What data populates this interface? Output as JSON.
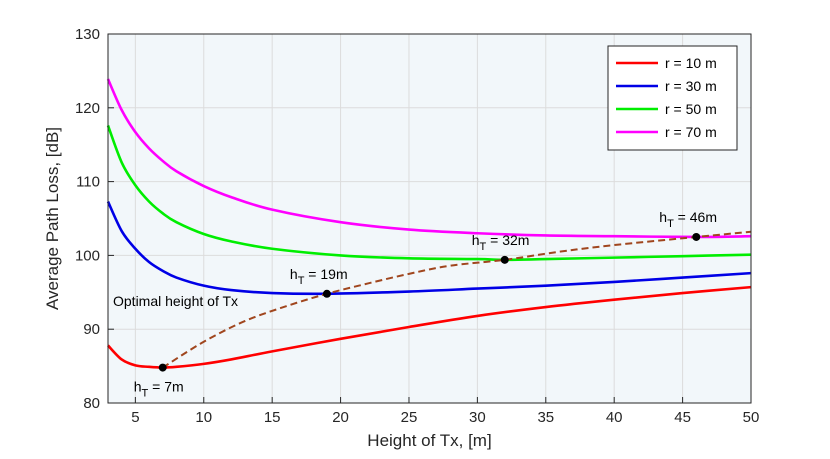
{
  "chart_data": {
    "type": "line",
    "xlabel": "Height of Tx, [m]",
    "ylabel": "Average Path Loss, [dB]",
    "xlim": [
      3,
      50
    ],
    "ylim": [
      80,
      130
    ],
    "xticks": [
      5,
      10,
      15,
      20,
      25,
      30,
      35,
      40,
      45,
      50
    ],
    "yticks": [
      80,
      90,
      100,
      110,
      120,
      130
    ],
    "grid": true,
    "legend_position": "top-right",
    "series": [
      {
        "name": "r = 10 m",
        "color": "#ff0000",
        "x": [
          3,
          4,
          5,
          6,
          7,
          8,
          10,
          12,
          15,
          20,
          25,
          30,
          35,
          40,
          45,
          50
        ],
        "y": [
          87.8,
          85.9,
          85.1,
          84.9,
          84.8,
          84.9,
          85.3,
          85.9,
          87.0,
          88.7,
          90.3,
          91.8,
          93.0,
          94.0,
          94.9,
          95.7
        ]
      },
      {
        "name": "r = 30 m",
        "color": "#0000e6",
        "x": [
          3,
          4,
          5,
          6,
          7,
          8,
          10,
          12,
          15,
          19,
          25,
          30,
          35,
          40,
          45,
          50
        ],
        "y": [
          107.3,
          103.3,
          100.9,
          99.1,
          97.9,
          97.0,
          95.9,
          95.3,
          94.9,
          94.8,
          95.1,
          95.5,
          95.9,
          96.4,
          97.0,
          97.6
        ]
      },
      {
        "name": "r = 50 m",
        "color": "#00ee00",
        "x": [
          3,
          4,
          5,
          6,
          7,
          8,
          10,
          12,
          15,
          20,
          25,
          30,
          32,
          35,
          40,
          45,
          50
        ],
        "y": [
          117.6,
          112.6,
          109.5,
          107.3,
          105.7,
          104.5,
          102.9,
          101.9,
          100.9,
          100.0,
          99.6,
          99.5,
          99.4,
          99.5,
          99.7,
          99.9,
          100.1
        ]
      },
      {
        "name": "r = 70 m",
        "color": "#ff00ff",
        "x": [
          3,
          4,
          5,
          6,
          7,
          8,
          10,
          12,
          15,
          20,
          25,
          30,
          35,
          40,
          46,
          50
        ],
        "y": [
          123.9,
          119.7,
          116.7,
          114.5,
          112.8,
          111.4,
          109.4,
          107.9,
          106.2,
          104.5,
          103.5,
          103.0,
          102.7,
          102.6,
          102.5,
          102.6
        ]
      },
      {
        "name": "Optimal height of Tx",
        "color": "#a0461e",
        "dashed": true,
        "x": [
          7,
          10,
          13,
          16,
          19,
          22,
          25,
          28,
          32,
          36,
          40,
          46,
          50
        ],
        "y": [
          84.8,
          88.3,
          91.1,
          93.1,
          94.8,
          96.2,
          97.5,
          98.6,
          99.4,
          100.5,
          101.4,
          102.5,
          103.2
        ]
      }
    ],
    "points": [
      {
        "x": 7,
        "y": 84.8,
        "label_prefix": "h",
        "label_sub": "T",
        "label_suffix": " = 7m"
      },
      {
        "x": 19,
        "y": 94.8,
        "label_prefix": "h",
        "label_sub": "T",
        "label_suffix": " = 19m"
      },
      {
        "x": 32,
        "y": 99.4,
        "label_prefix": "h",
        "label_sub": "T",
        "label_suffix": " = 32m"
      },
      {
        "x": 46,
        "y": 102.5,
        "label_prefix": "h",
        "label_sub": "T",
        "label_suffix": " = 46m"
      }
    ],
    "annotation": "Optimal height of Tx",
    "colors": {
      "plot_background": "#f2f7fa",
      "grid": "#dcdcdc",
      "axis": "#262626"
    }
  }
}
